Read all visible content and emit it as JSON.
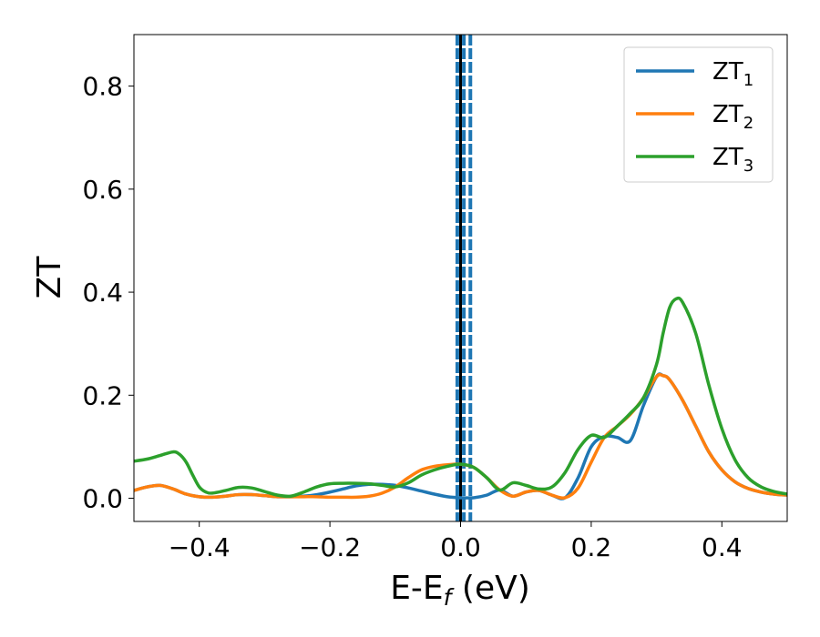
{
  "chart_data": {
    "type": "line",
    "xlabel": {
      "main": "E-E",
      "sub": "f",
      "tail": " (eV)"
    },
    "ylabel": "ZT",
    "xlim": [
      -0.5,
      0.5
    ],
    "ylim": [
      -0.045,
      0.9
    ],
    "x_ticks": [
      -0.4,
      -0.2,
      0.0,
      0.2,
      0.4
    ],
    "x_tick_labels": [
      "−0.4",
      "−0.2",
      "0.0",
      "0.2",
      "0.4"
    ],
    "y_ticks": [
      0.0,
      0.2,
      0.4,
      0.6,
      0.8
    ],
    "y_tick_labels": [
      "0.0",
      "0.2",
      "0.4",
      "0.6",
      "0.8"
    ],
    "grid": false,
    "legend_position": "top-right",
    "vertical_lines": [
      {
        "x": 0.0,
        "color": "#000000",
        "style": "solid"
      },
      {
        "x": -0.005,
        "color": "#1f77b4",
        "style": "dashed"
      },
      {
        "x": 0.005,
        "color": "#1f77b4",
        "style": "dashed"
      },
      {
        "x": 0.015,
        "color": "#1f77b4",
        "style": "dashed"
      }
    ],
    "series": [
      {
        "name": {
          "main": "ZT",
          "sub": "1"
        },
        "color": "#1f77b4",
        "x": [
          -0.5,
          -0.48,
          -0.46,
          -0.44,
          -0.42,
          -0.4,
          -0.38,
          -0.36,
          -0.34,
          -0.32,
          -0.3,
          -0.28,
          -0.26,
          -0.24,
          -0.22,
          -0.2,
          -0.18,
          -0.16,
          -0.14,
          -0.12,
          -0.1,
          -0.08,
          -0.06,
          -0.04,
          -0.02,
          0.0,
          0.02,
          0.04,
          0.06,
          0.08,
          0.1,
          0.12,
          0.14,
          0.16,
          0.18,
          0.2,
          0.22,
          0.24,
          0.26,
          0.28,
          0.3,
          0.31,
          0.32,
          0.34,
          0.36,
          0.38,
          0.4,
          0.42,
          0.44,
          0.46,
          0.48,
          0.5
        ],
        "values": [
          0.015,
          0.022,
          0.025,
          0.018,
          0.008,
          0.003,
          0.002,
          0.004,
          0.007,
          0.007,
          0.005,
          0.003,
          0.003,
          0.004,
          0.007,
          0.012,
          0.018,
          0.024,
          0.027,
          0.027,
          0.025,
          0.02,
          0.014,
          0.008,
          0.003,
          0.001,
          0.001,
          0.006,
          0.016,
          0.004,
          0.012,
          0.015,
          0.006,
          0.001,
          0.04,
          0.1,
          0.12,
          0.118,
          0.112,
          0.18,
          0.236,
          0.238,
          0.23,
          0.19,
          0.14,
          0.09,
          0.055,
          0.032,
          0.019,
          0.012,
          0.008,
          0.006
        ]
      },
      {
        "name": {
          "main": "ZT",
          "sub": "2"
        },
        "color": "#ff7f0e",
        "x": [
          -0.5,
          -0.48,
          -0.46,
          -0.44,
          -0.42,
          -0.4,
          -0.38,
          -0.36,
          -0.34,
          -0.32,
          -0.3,
          -0.28,
          -0.26,
          -0.24,
          -0.22,
          -0.2,
          -0.18,
          -0.16,
          -0.14,
          -0.12,
          -0.1,
          -0.08,
          -0.06,
          -0.04,
          -0.02,
          0.0,
          0.02,
          0.04,
          0.06,
          0.08,
          0.1,
          0.12,
          0.14,
          0.16,
          0.18,
          0.2,
          0.22,
          0.24,
          0.26,
          0.28,
          0.3,
          0.31,
          0.32,
          0.34,
          0.36,
          0.38,
          0.4,
          0.42,
          0.44,
          0.46,
          0.48,
          0.5
        ],
        "values": [
          0.015,
          0.022,
          0.025,
          0.018,
          0.008,
          0.003,
          0.002,
          0.004,
          0.007,
          0.007,
          0.005,
          0.003,
          0.003,
          0.003,
          0.003,
          0.002,
          0.002,
          0.002,
          0.004,
          0.01,
          0.022,
          0.04,
          0.055,
          0.062,
          0.065,
          0.066,
          0.06,
          0.04,
          0.016,
          0.004,
          0.012,
          0.015,
          0.006,
          0.001,
          0.02,
          0.07,
          0.118,
          0.14,
          0.163,
          0.195,
          0.236,
          0.238,
          0.23,
          0.19,
          0.14,
          0.09,
          0.055,
          0.032,
          0.019,
          0.012,
          0.008,
          0.006
        ]
      },
      {
        "name": {
          "main": "ZT",
          "sub": "3"
        },
        "color": "#2ca02c",
        "x": [
          -0.5,
          -0.48,
          -0.46,
          -0.44,
          -0.43,
          -0.42,
          -0.41,
          -0.4,
          -0.39,
          -0.38,
          -0.36,
          -0.34,
          -0.32,
          -0.3,
          -0.28,
          -0.26,
          -0.24,
          -0.22,
          -0.2,
          -0.18,
          -0.16,
          -0.14,
          -0.12,
          -0.1,
          -0.08,
          -0.06,
          -0.04,
          -0.02,
          0.0,
          0.02,
          0.04,
          0.06,
          0.08,
          0.1,
          0.12,
          0.14,
          0.16,
          0.18,
          0.2,
          0.22,
          0.24,
          0.26,
          0.28,
          0.3,
          0.31,
          0.32,
          0.33,
          0.34,
          0.36,
          0.38,
          0.4,
          0.42,
          0.44,
          0.46,
          0.48,
          0.5
        ],
        "values": [
          0.072,
          0.076,
          0.083,
          0.09,
          0.085,
          0.07,
          0.045,
          0.022,
          0.012,
          0.01,
          0.015,
          0.021,
          0.02,
          0.013,
          0.006,
          0.004,
          0.012,
          0.022,
          0.028,
          0.029,
          0.029,
          0.028,
          0.025,
          0.022,
          0.03,
          0.045,
          0.055,
          0.062,
          0.066,
          0.06,
          0.04,
          0.016,
          0.03,
          0.025,
          0.018,
          0.022,
          0.05,
          0.095,
          0.122,
          0.118,
          0.14,
          0.165,
          0.195,
          0.26,
          0.32,
          0.37,
          0.387,
          0.38,
          0.32,
          0.22,
          0.135,
          0.075,
          0.04,
          0.022,
          0.013,
          0.008
        ]
      }
    ]
  }
}
